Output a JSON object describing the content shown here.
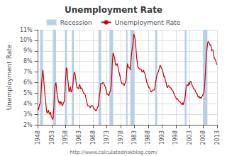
{
  "chart_data": {
    "type": "line",
    "title": "Unemployment Rate",
    "ylabel": "Unemployment Rate",
    "annotations": [
      "http://www.calculatedriskblog.com/"
    ],
    "xlim": [
      1948,
      2013
    ],
    "xticks": [
      1948,
      1953,
      1958,
      1963,
      1968,
      1973,
      1978,
      1983,
      1988,
      1993,
      1998,
      2003,
      2008,
      2013
    ],
    "ylim": [
      2,
      11
    ],
    "yticks": [
      {
        "value": 2,
        "label": "2%"
      },
      {
        "value": 3,
        "label": "3%"
      },
      {
        "value": 4,
        "label": "4%"
      },
      {
        "value": 5,
        "label": "5%"
      },
      {
        "value": 6,
        "label": "6%"
      },
      {
        "value": 7,
        "label": "7%"
      },
      {
        "value": 8,
        "label": "8%"
      },
      {
        "value": 9,
        "label": "9%"
      },
      {
        "value": 10,
        "label": "10%"
      },
      {
        "value": 11,
        "label": "11%"
      }
    ],
    "grid": true,
    "legend": "top",
    "recession": {
      "name": "Recession",
      "color": "#b8cfe8",
      "periods": [
        [
          1948.75,
          1949.75
        ],
        [
          1953.5,
          1954.5
        ],
        [
          1957.75,
          1958.5
        ],
        [
          1960.25,
          1961.0
        ],
        [
          1969.917,
          1970.917
        ],
        [
          1973.917,
          1975.25
        ],
        [
          1980.0,
          1980.5
        ],
        [
          1981.5,
          1982.917
        ],
        [
          1990.5,
          1991.25
        ],
        [
          2001.25,
          2001.917
        ],
        [
          2007.917,
          2009.5
        ]
      ]
    },
    "x": [
      1948.0,
      1948.25,
      1948.5,
      1948.75,
      1949.0,
      1949.25,
      1949.5,
      1949.75,
      1950.0,
      1950.25,
      1950.5,
      1950.75,
      1951.0,
      1951.25,
      1951.5,
      1951.75,
      1952.0,
      1952.25,
      1952.5,
      1952.75,
      1953.0,
      1953.25,
      1953.5,
      1953.75,
      1954.0,
      1954.25,
      1954.5,
      1954.75,
      1955.0,
      1955.25,
      1955.5,
      1955.75,
      1956.0,
      1956.25,
      1956.5,
      1956.75,
      1957.0,
      1957.25,
      1957.5,
      1957.75,
      1958.0,
      1958.25,
      1958.5,
      1958.75,
      1959.0,
      1959.25,
      1959.5,
      1959.75,
      1960.0,
      1960.25,
      1960.5,
      1960.75,
      1961.0,
      1961.25,
      1961.5,
      1961.75,
      1962.0,
      1962.25,
      1962.5,
      1962.75,
      1963.0,
      1963.25,
      1963.5,
      1963.75,
      1964.0,
      1964.25,
      1964.5,
      1964.75,
      1965.0,
      1965.25,
      1965.5,
      1965.75,
      1966.0,
      1966.25,
      1966.5,
      1966.75,
      1967.0,
      1967.25,
      1967.5,
      1967.75,
      1968.0,
      1968.25,
      1968.5,
      1968.75,
      1969.0,
      1969.25,
      1969.5,
      1969.75,
      1970.0,
      1970.25,
      1970.5,
      1970.75,
      1971.0,
      1971.25,
      1971.5,
      1971.75,
      1972.0,
      1972.25,
      1972.5,
      1972.75,
      1973.0,
      1973.25,
      1973.5,
      1973.75,
      1974.0,
      1974.25,
      1974.5,
      1974.75,
      1975.0,
      1975.25,
      1975.5,
      1975.75,
      1976.0,
      1976.25,
      1976.5,
      1976.75,
      1977.0,
      1977.25,
      1977.5,
      1977.75,
      1978.0,
      1978.25,
      1978.5,
      1978.75,
      1979.0,
      1979.25,
      1979.5,
      1979.75,
      1980.0,
      1980.25,
      1980.5,
      1980.75,
      1981.0,
      1981.25,
      1981.5,
      1981.75,
      1982.0,
      1982.25,
      1982.5,
      1982.75,
      1983.0,
      1983.25,
      1983.5,
      1983.75,
      1984.0,
      1984.25,
      1984.5,
      1984.75,
      1985.0,
      1985.25,
      1985.5,
      1985.75,
      1986.0,
      1986.25,
      1986.5,
      1986.75,
      1987.0,
      1987.25,
      1987.5,
      1987.75,
      1988.0,
      1988.25,
      1988.5,
      1988.75,
      1989.0,
      1989.25,
      1989.5,
      1989.75,
      1990.0,
      1990.25,
      1990.5,
      1990.75,
      1991.0,
      1991.25,
      1991.5,
      1991.75,
      1992.0,
      1992.25,
      1992.5,
      1992.75,
      1993.0,
      1993.25,
      1993.5,
      1993.75,
      1994.0,
      1994.25,
      1994.5,
      1994.75,
      1995.0,
      1995.25,
      1995.5,
      1995.75,
      1996.0,
      1996.25,
      1996.5,
      1996.75,
      1997.0,
      1997.25,
      1997.5,
      1997.75,
      1998.0,
      1998.25,
      1998.5,
      1998.75,
      1999.0,
      1999.25,
      1999.5,
      1999.75,
      2000.0,
      2000.25,
      2000.5,
      2000.75,
      2001.0,
      2001.25,
      2001.5,
      2001.75,
      2002.0,
      2002.25,
      2002.5,
      2002.75,
      2003.0,
      2003.25,
      2003.5,
      2003.75,
      2004.0,
      2004.25,
      2004.5,
      2004.75,
      2005.0,
      2005.25,
      2005.5,
      2005.75,
      2006.0,
      2006.25,
      2006.5,
      2006.75,
      2007.0,
      2007.25,
      2007.5,
      2007.75,
      2008.0,
      2008.25,
      2008.5,
      2008.75,
      2009.0,
      2009.25,
      2009.5,
      2009.75,
      2010.0,
      2010.25,
      2010.5,
      2010.75,
      2011.0,
      2011.25,
      2011.5,
      2011.75,
      2012.0,
      2012.25,
      2012.5,
      2012.75,
      2013.0
    ],
    "series": [
      {
        "name": "Unemployment Rate",
        "color": "#cc0000",
        "values": [
          3.4,
          3.5,
          3.9,
          4.0,
          4.7,
          5.9,
          6.6,
          7.2,
          6.5,
          5.6,
          4.8,
          4.2,
          3.5,
          3.1,
          3.2,
          3.4,
          3.1,
          3.0,
          3.2,
          2.8,
          2.7,
          2.5,
          2.7,
          3.8,
          5.3,
          5.8,
          6.0,
          5.3,
          4.6,
          4.4,
          4.1,
          4.2,
          3.9,
          4.2,
          4.1,
          3.8,
          3.9,
          4.1,
          4.2,
          5.1,
          6.3,
          7.4,
          7.3,
          6.4,
          5.8,
          5.1,
          5.3,
          5.6,
          5.1,
          5.2,
          5.5,
          6.1,
          6.8,
          7.0,
          6.7,
          6.2,
          5.6,
          5.5,
          5.5,
          5.4,
          5.8,
          5.7,
          5.4,
          5.5,
          5.4,
          5.2,
          5.0,
          5.0,
          4.9,
          4.7,
          4.4,
          4.1,
          3.8,
          3.8,
          3.8,
          3.7,
          3.6,
          3.8,
          3.8,
          3.8,
          3.7,
          3.5,
          3.5,
          3.4,
          3.3,
          3.4,
          3.6,
          3.7,
          4.2,
          4.8,
          5.1,
          5.9,
          5.9,
          5.9,
          6.0,
          6.0,
          5.8,
          5.7,
          5.5,
          5.2,
          4.9,
          4.9,
          4.8,
          4.8,
          5.1,
          5.2,
          5.6,
          6.6,
          8.1,
          8.8,
          8.6,
          8.4,
          7.9,
          7.6,
          7.7,
          7.8,
          7.5,
          7.1,
          6.9,
          6.6,
          6.3,
          6.0,
          5.9,
          5.9,
          5.9,
          5.7,
          5.9,
          6.0,
          6.3,
          7.3,
          7.8,
          7.5,
          7.4,
          7.4,
          7.2,
          8.2,
          8.8,
          9.3,
          9.7,
          10.6,
          10.4,
          10.1,
          9.4,
          8.5,
          7.9,
          7.5,
          7.4,
          7.3,
          7.3,
          7.3,
          7.2,
          7.0,
          7.0,
          7.2,
          7.0,
          6.9,
          6.6,
          6.3,
          6.0,
          5.9,
          5.7,
          5.5,
          5.5,
          5.3,
          5.1,
          5.2,
          5.2,
          5.3,
          5.3,
          5.3,
          5.7,
          6.1,
          6.5,
          6.8,
          6.9,
          7.1,
          7.3,
          7.6,
          7.6,
          7.4,
          7.3,
          7.1,
          6.8,
          6.5,
          6.6,
          6.1,
          6.0,
          5.6,
          5.5,
          5.7,
          5.7,
          5.6,
          5.5,
          5.5,
          5.3,
          5.3,
          5.2,
          5.0,
          4.9,
          4.7,
          4.6,
          4.4,
          4.5,
          4.4,
          4.3,
          4.2,
          4.2,
          4.1,
          4.0,
          3.9,
          4.1,
          3.9,
          4.2,
          4.4,
          4.8,
          5.5,
          5.7,
          5.8,
          5.7,
          6.0,
          5.8,
          6.1,
          6.1,
          5.9,
          5.7,
          5.6,
          5.4,
          5.4,
          5.3,
          5.1,
          5.0,
          4.9,
          4.7,
          4.6,
          4.7,
          4.5,
          4.6,
          4.5,
          4.7,
          4.8,
          4.9,
          5.1,
          5.8,
          6.9,
          8.1,
          9.0,
          9.6,
          9.9,
          9.8,
          9.7,
          9.5,
          9.6,
          9.0,
          9.1,
          9.1,
          8.7,
          8.3,
          8.2,
          8.1,
          7.8,
          7.7
        ]
      }
    ]
  }
}
